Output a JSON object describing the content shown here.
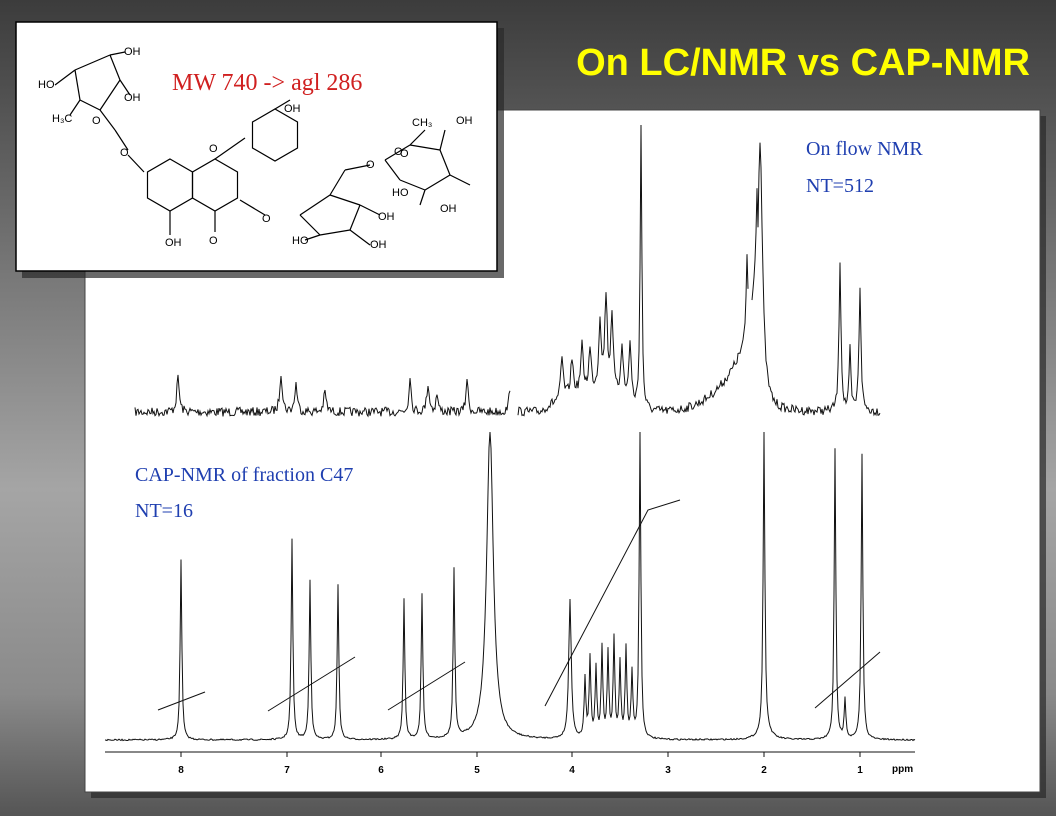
{
  "title": "On LC/NMR vs CAP-NMR",
  "structure": {
    "caption": "MW 740 -> agl 286",
    "labels": [
      "OH",
      "HO",
      "OH",
      "H₃C",
      "O",
      "O",
      "O",
      "OH",
      "O",
      "OH",
      "O",
      "O",
      "CH₃",
      "OH",
      "O",
      "HO",
      "OH",
      "O",
      "OH",
      "HO",
      "OH"
    ]
  },
  "spectra": {
    "top": {
      "label": "On flow NMR",
      "scans": "NT=512"
    },
    "bottom": {
      "label": "CAP-NMR of fraction C47",
      "scans": "NT=16"
    },
    "axis": {
      "ticks": [
        "8",
        "7",
        "6",
        "5",
        "4",
        "3",
        "2",
        "1"
      ],
      "unit": "ppm"
    }
  }
}
